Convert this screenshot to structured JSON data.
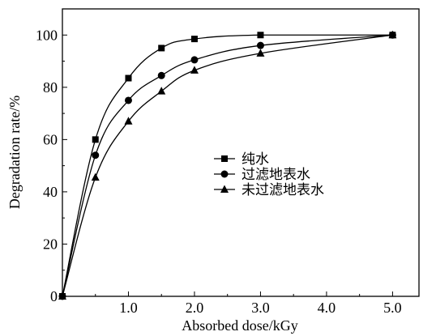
{
  "chart_data": {
    "type": "line",
    "title": "",
    "xlabel": "Absorbed dose/kGy",
    "ylabel": "Degradation rate/%",
    "x_tick_labels": [
      "1.0",
      "2.0",
      "3.0",
      "4.0",
      "5.0"
    ],
    "y_tick_labels": [
      "0",
      "20",
      "40",
      "60",
      "80",
      "100"
    ],
    "xlim": [
      0,
      5.4
    ],
    "ylim": [
      0,
      110
    ],
    "grid": false,
    "legend_position": "center-right",
    "series": [
      {
        "name": "纯水",
        "marker": "square",
        "x": [
          0,
          0.5,
          1.0,
          1.5,
          2.0,
          3.0,
          5.0
        ],
        "y": [
          0,
          60,
          83.5,
          95,
          98.5,
          100,
          100
        ]
      },
      {
        "name": "过滤地表水",
        "marker": "circle",
        "x": [
          0,
          0.5,
          1.0,
          1.5,
          2.0,
          3.0,
          5.0
        ],
        "y": [
          0,
          54,
          75,
          84.5,
          90.5,
          96,
          100
        ]
      },
      {
        "name": "未过滤地表水",
        "marker": "triangle",
        "x": [
          0,
          0.5,
          1.0,
          1.5,
          2.0,
          3.0,
          5.0
        ],
        "y": [
          0,
          45.5,
          67,
          78.5,
          86.5,
          93,
          100
        ]
      }
    ]
  }
}
